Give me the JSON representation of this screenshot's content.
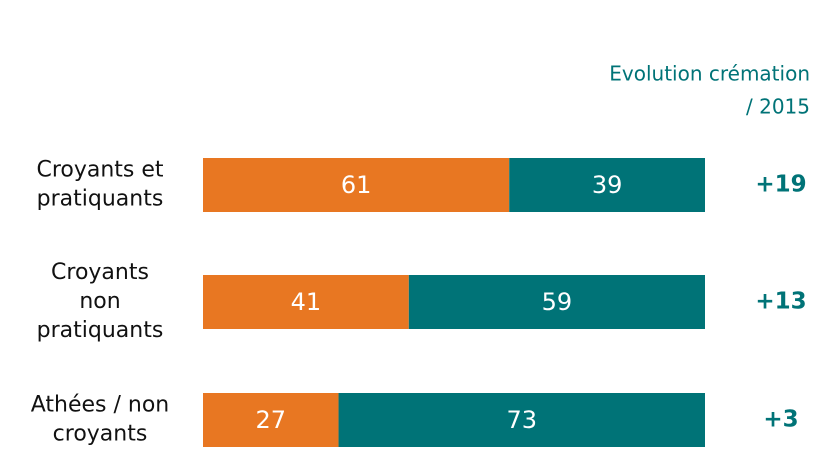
{
  "chart_data": {
    "type": "stacked_bar_horizontal",
    "annotation": [
      "Evolution crémation",
      "/ 2015"
    ],
    "categories": [
      [
        "Croyants et",
        "pratiquants"
      ],
      [
        "Croyants",
        "non",
        "pratiquants"
      ],
      [
        "Athées / non",
        "croyants"
      ]
    ],
    "series": [
      {
        "color": "#e87722",
        "values": [
          61,
          41,
          27
        ]
      },
      {
        "color": "#007377",
        "values": [
          39,
          59,
          73
        ]
      }
    ],
    "xlim": [
      0,
      100
    ],
    "evolution": {
      "color": "#007377",
      "values": [
        19,
        13,
        3
      ],
      "value_labels": [
        "+19",
        "+13",
        "+3"
      ]
    }
  }
}
